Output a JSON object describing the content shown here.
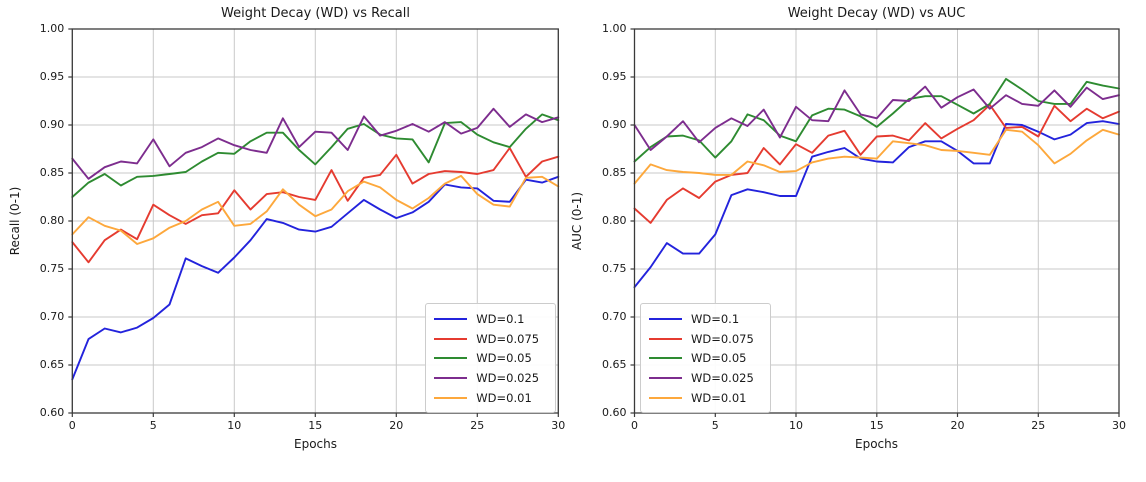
{
  "figure": {
    "background": "#ffffff",
    "grid_color": "#c9c9c9",
    "spine_color": "#3a3a3a",
    "text_color": "#1a1a1a"
  },
  "chart_data": [
    {
      "type": "line",
      "title": "Weight Decay (WD) vs Recall",
      "xlabel": "Epochs",
      "ylabel": "Recall (0-1)",
      "xlim": [
        0,
        30
      ],
      "ylim": [
        0.6,
        1.0
      ],
      "xticks": [
        0,
        5,
        10,
        15,
        20,
        25,
        30
      ],
      "xticklabels": [
        "0",
        "5",
        "10",
        "15",
        "20",
        "25",
        "30"
      ],
      "yticks": [
        0.6,
        0.65,
        0.7,
        0.75,
        0.8,
        0.85,
        0.9,
        0.95,
        1.0
      ],
      "yticklabels": [
        "0.60",
        "0.65",
        "0.70",
        "0.75",
        "0.80",
        "0.85",
        "0.90",
        "0.95",
        "1.00"
      ],
      "grid": true,
      "legend_position": "lower-right",
      "x": [
        0,
        1,
        2,
        3,
        4,
        5,
        6,
        7,
        8,
        9,
        10,
        11,
        12,
        13,
        14,
        15,
        16,
        17,
        18,
        19,
        20,
        21,
        22,
        23,
        24,
        25,
        26,
        27,
        28,
        29,
        30
      ],
      "series": [
        {
          "name": "WD=0.1",
          "color": "#2323dc",
          "values": [
            0.635,
            0.677,
            0.688,
            0.684,
            0.689,
            0.699,
            0.713,
            0.761,
            0.753,
            0.746,
            0.762,
            0.78,
            0.802,
            0.798,
            0.791,
            0.789,
            0.794,
            0.808,
            0.822,
            0.812,
            0.803,
            0.809,
            0.82,
            0.838,
            0.835,
            0.834,
            0.821,
            0.82,
            0.843,
            0.84,
            0.846
          ]
        },
        {
          "name": "WD=0.075",
          "color": "#e53b30",
          "values": [
            0.778,
            0.757,
            0.78,
            0.791,
            0.781,
            0.817,
            0.806,
            0.797,
            0.806,
            0.808,
            0.832,
            0.812,
            0.828,
            0.83,
            0.825,
            0.822,
            0.853,
            0.821,
            0.845,
            0.848,
            0.869,
            0.839,
            0.849,
            0.852,
            0.851,
            0.849,
            0.853,
            0.876,
            0.846,
            0.862,
            0.867
          ]
        },
        {
          "name": "WD=0.05",
          "color": "#2e8b31",
          "values": [
            0.825,
            0.84,
            0.849,
            0.837,
            0.846,
            0.847,
            0.849,
            0.851,
            0.862,
            0.871,
            0.87,
            0.883,
            0.892,
            0.892,
            0.874,
            0.859,
            0.877,
            0.896,
            0.901,
            0.89,
            0.886,
            0.885,
            0.861,
            0.902,
            0.903,
            0.89,
            0.882,
            0.877,
            0.896,
            0.911,
            0.905
          ]
        },
        {
          "name": "WD=0.025",
          "color": "#7d2d8e",
          "values": [
            0.865,
            0.844,
            0.856,
            0.862,
            0.86,
            0.885,
            0.857,
            0.871,
            0.877,
            0.886,
            0.879,
            0.874,
            0.871,
            0.907,
            0.877,
            0.893,
            0.892,
            0.874,
            0.909,
            0.889,
            0.894,
            0.901,
            0.893,
            0.903,
            0.891,
            0.897,
            0.917,
            0.898,
            0.911,
            0.903,
            0.908
          ]
        },
        {
          "name": "WD=0.01",
          "color": "#fda83c",
          "values": [
            0.786,
            0.804,
            0.795,
            0.79,
            0.776,
            0.782,
            0.793,
            0.8,
            0.812,
            0.82,
            0.795,
            0.797,
            0.81,
            0.833,
            0.817,
            0.805,
            0.812,
            0.831,
            0.841,
            0.835,
            0.822,
            0.813,
            0.824,
            0.839,
            0.847,
            0.828,
            0.817,
            0.815,
            0.845,
            0.846,
            0.836
          ]
        }
      ]
    },
    {
      "type": "line",
      "title": "Weight Decay (WD) vs AUC",
      "xlabel": "Epochs",
      "ylabel": "AUC (0-1)",
      "xlim": [
        0,
        30
      ],
      "ylim": [
        0.6,
        1.0
      ],
      "xticks": [
        0,
        5,
        10,
        15,
        20,
        25,
        30
      ],
      "xticklabels": [
        "0",
        "5",
        "10",
        "15",
        "20",
        "25",
        "30"
      ],
      "yticks": [
        0.6,
        0.65,
        0.7,
        0.75,
        0.8,
        0.85,
        0.9,
        0.95,
        1.0
      ],
      "yticklabels": [
        "0.60",
        "0.65",
        "0.70",
        "0.75",
        "0.80",
        "0.85",
        "0.90",
        "0.95",
        "1.00"
      ],
      "grid": true,
      "legend_position": "lower-left",
      "x": [
        0,
        1,
        2,
        3,
        4,
        5,
        6,
        7,
        8,
        9,
        10,
        11,
        12,
        13,
        14,
        15,
        16,
        17,
        18,
        19,
        20,
        21,
        22,
        23,
        24,
        25,
        26,
        27,
        28,
        29,
        30
      ],
      "series": [
        {
          "name": "WD=0.1",
          "color": "#2323dc",
          "values": [
            0.731,
            0.752,
            0.777,
            0.766,
            0.766,
            0.786,
            0.827,
            0.833,
            0.83,
            0.826,
            0.826,
            0.867,
            0.872,
            0.876,
            0.865,
            0.862,
            0.861,
            0.877,
            0.883,
            0.883,
            0.873,
            0.86,
            0.86,
            0.901,
            0.9,
            0.893,
            0.885,
            0.89,
            0.902,
            0.904,
            0.901
          ]
        },
        {
          "name": "WD=0.075",
          "color": "#e53b30",
          "values": [
            0.813,
            0.798,
            0.822,
            0.834,
            0.824,
            0.841,
            0.848,
            0.85,
            0.876,
            0.859,
            0.88,
            0.871,
            0.889,
            0.894,
            0.869,
            0.888,
            0.889,
            0.884,
            0.902,
            0.886,
            0.896,
            0.905,
            0.921,
            0.897,
            0.898,
            0.888,
            0.92,
            0.904,
            0.917,
            0.907,
            0.914
          ]
        },
        {
          "name": "WD=0.05",
          "color": "#2e8b31",
          "values": [
            0.862,
            0.877,
            0.888,
            0.889,
            0.884,
            0.866,
            0.883,
            0.911,
            0.905,
            0.889,
            0.883,
            0.91,
            0.917,
            0.916,
            0.909,
            0.898,
            0.912,
            0.927,
            0.93,
            0.93,
            0.921,
            0.912,
            0.922,
            0.948,
            0.937,
            0.925,
            0.922,
            0.922,
            0.945,
            0.941,
            0.938
          ]
        },
        {
          "name": "WD=0.025",
          "color": "#7d2d8e",
          "values": [
            0.9,
            0.874,
            0.888,
            0.904,
            0.882,
            0.897,
            0.907,
            0.899,
            0.916,
            0.887,
            0.919,
            0.905,
            0.904,
            0.936,
            0.911,
            0.907,
            0.926,
            0.925,
            0.94,
            0.918,
            0.929,
            0.937,
            0.917,
            0.931,
            0.922,
            0.92,
            0.936,
            0.919,
            0.939,
            0.927,
            0.931
          ]
        },
        {
          "name": "WD=0.01",
          "color": "#fda83c",
          "values": [
            0.839,
            0.859,
            0.853,
            0.851,
            0.85,
            0.848,
            0.848,
            0.862,
            0.858,
            0.851,
            0.852,
            0.861,
            0.865,
            0.867,
            0.866,
            0.865,
            0.883,
            0.881,
            0.879,
            0.874,
            0.873,
            0.871,
            0.869,
            0.895,
            0.893,
            0.879,
            0.86,
            0.87,
            0.884,
            0.895,
            0.89
          ]
        }
      ]
    }
  ]
}
